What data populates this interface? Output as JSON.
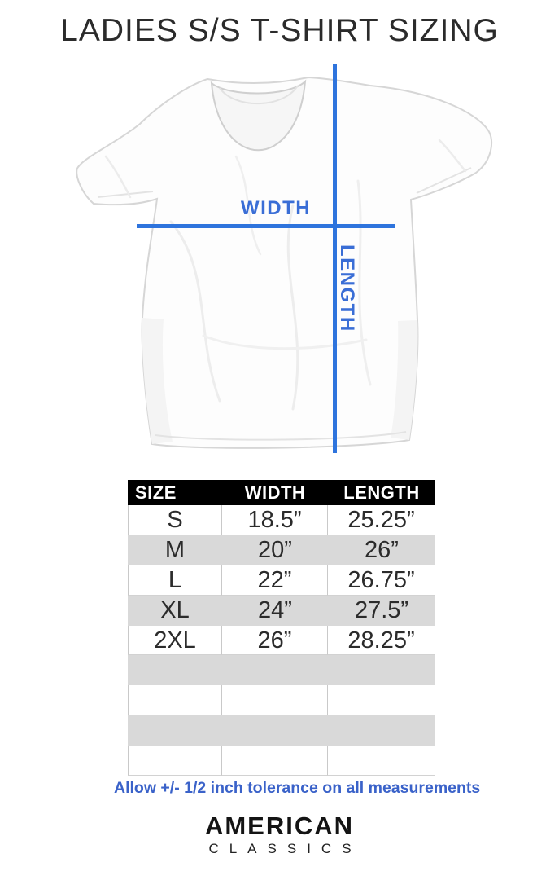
{
  "page": {
    "title": "LADIES S/S T-SHIRT SIZING",
    "tolerance_note": "Allow +/- 1/2 inch tolerance on all measurements"
  },
  "diagram": {
    "width_label": "WIDTH",
    "length_label": "LENGTH",
    "line_color": "#2e74dd",
    "label_color": "#3a6ed6"
  },
  "size_table": {
    "headers": [
      "SIZE",
      "WIDTH",
      "LENGTH"
    ],
    "rows": [
      {
        "size": "S",
        "width": "18.5”",
        "length": "25.25”"
      },
      {
        "size": "M",
        "width": "20”",
        "length": "26”"
      },
      {
        "size": "L",
        "width": "22”",
        "length": "26.75”"
      },
      {
        "size": "XL",
        "width": "24”",
        "length": "27.5”"
      },
      {
        "size": "2XL",
        "width": "26”",
        "length": "28.25”"
      }
    ],
    "empty_rows": 4,
    "header_bg": "#000000",
    "stripe_color": "#d9d9d9"
  },
  "brand": {
    "name_line1": "AMERICAN",
    "name_line2": "CLASSICS"
  }
}
